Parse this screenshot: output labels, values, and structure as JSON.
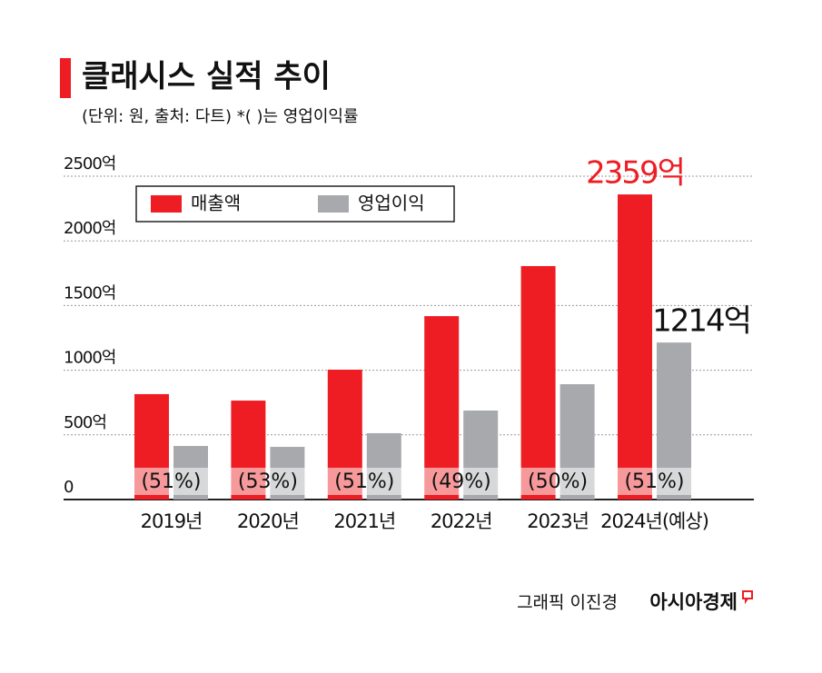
{
  "chart_data": {
    "type": "bar",
    "title": "클래시스 실적 추이",
    "subtitle": "(단위: 원, 출처: 다트)  *(  )는 영업이익률",
    "categories": [
      "2019년",
      "2020년",
      "2021년",
      "2022년",
      "2023년",
      "2024년(예상)"
    ],
    "series": [
      {
        "name": "매출액",
        "color": "#ee1d23",
        "values": [
          815,
          765,
          1004,
          1418,
          1805,
          2359
        ],
        "value_labels": [
          null,
          null,
          null,
          null,
          null,
          "2359억"
        ],
        "label_color": "#ee1d23"
      },
      {
        "name": "영업이익",
        "color": "#a7a9ac",
        "values": [
          414,
          407,
          513,
          688,
          892,
          1214
        ],
        "value_labels": [
          null,
          null,
          null,
          null,
          null,
          "1214억"
        ],
        "label_color": "#111111"
      }
    ],
    "margin_labels": [
      "(51%)",
      "(53%)",
      "(51%)",
      "(49%)",
      "(50%)",
      "(51%)"
    ],
    "ylim": [
      0,
      2500
    ],
    "yticks": [
      0,
      {
        "value": 500,
        "label": "500억"
      },
      {
        "value": 1000,
        "label": "1000억"
      },
      {
        "value": 1500,
        "label": "1500억"
      },
      {
        "value": 2000,
        "label": "2000억"
      },
      {
        "value": 2500,
        "label": "2500억"
      }
    ],
    "grid": true,
    "legend": "top-left",
    "credit": "그래픽 이진경",
    "publisher": "아시아경제"
  }
}
